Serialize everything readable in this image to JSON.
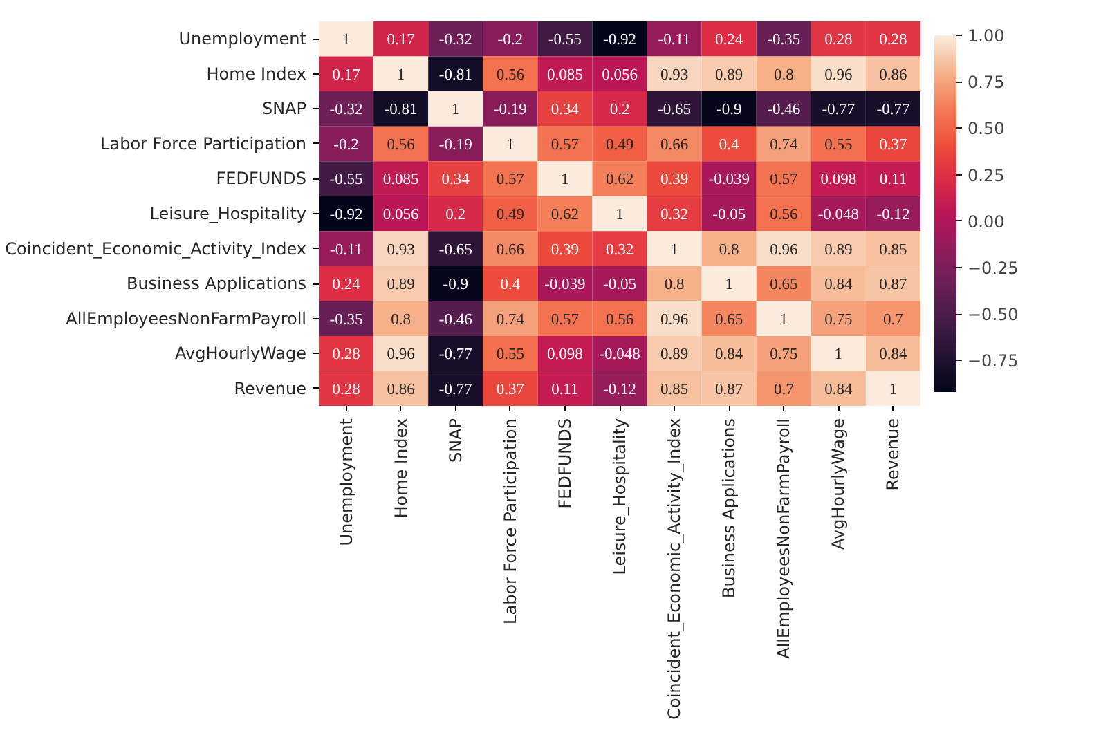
{
  "chart_data": {
    "type": "heatmap",
    "categories": [
      "Unemployment",
      "Home Index",
      "SNAP",
      "Labor Force Participation",
      "FEDFUNDS",
      "Leisure_Hospitality",
      "Coincident_Economic_Activity_Index",
      "Business Applications",
      "AllEmployeesNonFarmPayroll",
      "AvgHourlyWage",
      "Revenue"
    ],
    "y_categories": [
      "Unemployment",
      "Home Index",
      "SNAP",
      "Labor Force Participation",
      "FEDFUNDS",
      "Leisure_Hospitality",
      "Coincident_Economic_Activity_Index",
      "Business Applications",
      "AllEmployeesNonFarmPayroll",
      "AvgHourlyWage",
      "Revenue"
    ],
    "cells": [
      [
        1,
        0.17,
        -0.32,
        -0.2,
        -0.55,
        -0.92,
        -0.11,
        0.24,
        -0.35,
        0.28,
        0.28
      ],
      [
        0.17,
        1,
        -0.81,
        0.56,
        0.085,
        0.056,
        0.93,
        0.89,
        0.8,
        0.96,
        0.86
      ],
      [
        -0.32,
        -0.81,
        1,
        -0.19,
        0.34,
        0.2,
        -0.65,
        -0.9,
        -0.46,
        -0.77,
        -0.77
      ],
      [
        -0.2,
        0.56,
        -0.19,
        1,
        0.57,
        0.49,
        0.66,
        0.4,
        0.74,
        0.55,
        0.37
      ],
      [
        -0.55,
        0.085,
        0.34,
        0.57,
        1,
        0.62,
        0.39,
        -0.039,
        0.57,
        0.098,
        0.11
      ],
      [
        -0.92,
        0.056,
        0.2,
        0.49,
        0.62,
        1,
        0.32,
        -0.05,
        0.56,
        -0.048,
        -0.12
      ],
      [
        -0.11,
        0.93,
        -0.65,
        0.66,
        0.39,
        0.32,
        1,
        0.8,
        0.96,
        0.89,
        0.85
      ],
      [
        0.24,
        0.89,
        -0.9,
        0.4,
        -0.039,
        -0.05,
        0.8,
        1,
        0.65,
        0.84,
        0.87
      ],
      [
        -0.35,
        0.8,
        -0.46,
        0.74,
        0.57,
        0.56,
        0.96,
        0.65,
        1,
        0.75,
        0.7
      ],
      [
        0.28,
        0.96,
        -0.77,
        0.55,
        0.098,
        -0.048,
        0.89,
        0.84,
        0.75,
        1,
        0.84
      ],
      [
        0.28,
        0.86,
        -0.77,
        0.37,
        0.11,
        -0.12,
        0.85,
        0.87,
        0.7,
        0.84,
        1
      ]
    ],
    "data_labels": true,
    "clim": [
      -0.92,
      1
    ],
    "cticks": [
      {
        "value": -0.75,
        "label": "−0.75"
      },
      {
        "value": -0.5,
        "label": "−0.50"
      },
      {
        "value": -0.25,
        "label": "−0.25"
      },
      {
        "value": 0,
        "label": "0.00"
      },
      {
        "value": 0.25,
        "label": "0.25"
      },
      {
        "value": 0.5,
        "label": "0.50"
      },
      {
        "value": 0.75,
        "label": "0.75"
      },
      {
        "value": 1,
        "label": "1.00"
      }
    ]
  }
}
